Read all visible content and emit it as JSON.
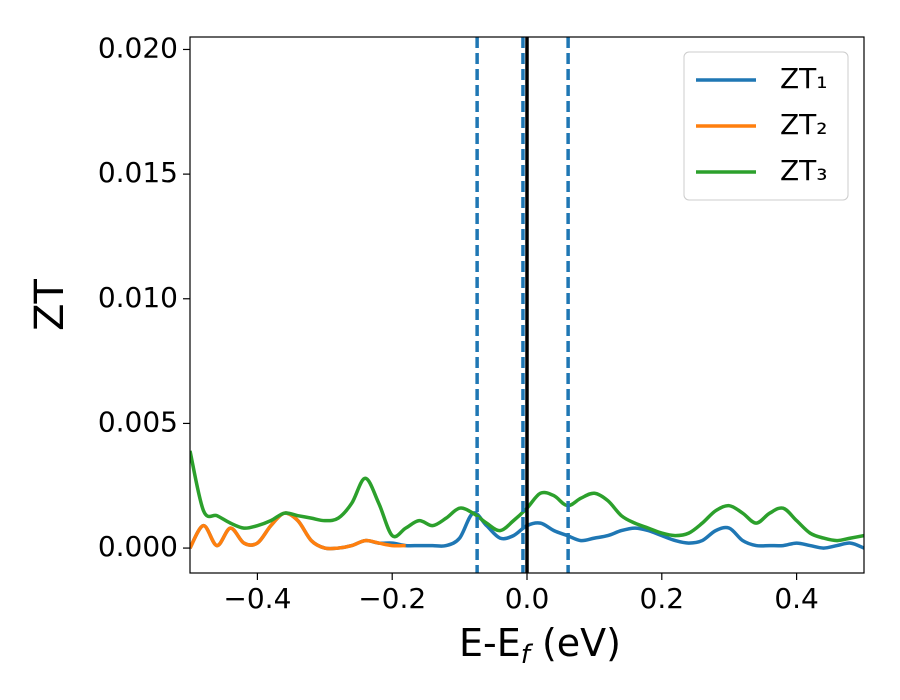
{
  "chart_data": {
    "type": "line",
    "x_label": [
      "E-E",
      "f",
      " (eV)"
    ],
    "y_label": "ZT",
    "x": [
      -0.5,
      -0.48,
      -0.46,
      -0.44,
      -0.42,
      -0.4,
      -0.38,
      -0.36,
      -0.34,
      -0.32,
      -0.3,
      -0.28,
      -0.26,
      -0.24,
      -0.22,
      -0.2,
      -0.18,
      -0.16,
      -0.14,
      -0.12,
      -0.1,
      -0.08,
      -0.06,
      -0.04,
      -0.02,
      0.0,
      0.02,
      0.04,
      0.06,
      0.08,
      0.1,
      0.12,
      0.14,
      0.16,
      0.18,
      0.2,
      0.22,
      0.24,
      0.26,
      0.28,
      0.3,
      0.32,
      0.34,
      0.36,
      0.38,
      0.4,
      0.42,
      0.44,
      0.46,
      0.48,
      0.5
    ],
    "series": [
      {
        "name": "ZT₁",
        "color": "#1f77b4",
        "values": [
          0.0,
          0.0009,
          0.0001,
          0.0008,
          0.0002,
          0.0002,
          0.0009,
          0.0014,
          0.0011,
          0.0003,
          0.0,
          0.0,
          0.0001,
          0.0003,
          0.0002,
          0.0002,
          0.0001,
          0.0001,
          0.0001,
          0.0001,
          0.0004,
          0.0014,
          0.0009,
          0.0004,
          0.0005,
          0.0009,
          0.001,
          0.0007,
          0.0005,
          0.0003,
          0.0004,
          0.0005,
          0.0007,
          0.0008,
          0.0007,
          0.0005,
          0.0003,
          0.0002,
          0.0003,
          0.0007,
          0.0008,
          0.0003,
          0.0001,
          0.0001,
          0.0001,
          0.0002,
          0.0001,
          0.0,
          0.0001,
          0.0002,
          0.0
        ]
      },
      {
        "name": "ZT₂",
        "color": "#ff7f0e",
        "values": [
          0.0,
          0.0009,
          0.0001,
          0.0008,
          0.0002,
          0.0002,
          0.0009,
          0.0014,
          0.0011,
          0.0003,
          0.0,
          0.0,
          0.0001,
          0.0003,
          0.0002,
          0.0001,
          0.0001,
          null,
          null,
          null,
          null,
          null,
          null,
          null,
          null,
          null,
          null,
          null,
          null,
          null,
          null,
          null,
          null,
          null,
          null,
          null,
          null,
          null,
          null,
          null,
          null,
          null,
          null,
          null,
          null,
          null,
          null,
          null,
          null,
          null,
          null
        ]
      },
      {
        "name": "ZT₃",
        "color": "#2ca02c",
        "values": [
          0.0039,
          0.0015,
          0.0013,
          0.001,
          0.0008,
          0.0009,
          0.0011,
          0.0014,
          0.0013,
          0.0012,
          0.0011,
          0.0012,
          0.0018,
          0.0028,
          0.0018,
          0.0005,
          0.0008,
          0.0011,
          0.0009,
          0.0012,
          0.0016,
          0.0014,
          0.001,
          0.0007,
          0.0011,
          0.0016,
          0.0022,
          0.0021,
          0.0017,
          0.002,
          0.0022,
          0.0019,
          0.0013,
          0.001,
          0.0008,
          0.0006,
          0.0005,
          0.0006,
          0.001,
          0.0015,
          0.0017,
          0.0014,
          0.001,
          0.0014,
          0.0016,
          0.0011,
          0.0006,
          0.0004,
          0.0003,
          0.0004,
          0.0005
        ]
      }
    ],
    "vlines": [
      {
        "x": -0.074,
        "color": "#1f77b4",
        "dashed": true
      },
      {
        "x": -0.006,
        "color": "#1f77b4",
        "dashed": true
      },
      {
        "x": 0.061,
        "color": "#1f77b4",
        "dashed": true
      },
      {
        "x": 0.0,
        "color": "#000000",
        "dashed": false
      }
    ],
    "xlim": [
      -0.5,
      0.5
    ],
    "ylim": [
      -0.001,
      0.0205
    ],
    "xticks": [
      {
        "value": -0.4,
        "label": "−0.4"
      },
      {
        "value": -0.2,
        "label": "−0.2"
      },
      {
        "value": 0.0,
        "label": "0.0"
      },
      {
        "value": 0.2,
        "label": "0.2"
      },
      {
        "value": 0.4,
        "label": "0.4"
      }
    ],
    "yticks": [
      {
        "value": 0.0,
        "label": "0.000"
      },
      {
        "value": 0.005,
        "label": "0.005"
      },
      {
        "value": 0.01,
        "label": "0.010"
      },
      {
        "value": 0.015,
        "label": "0.015"
      },
      {
        "value": 0.02,
        "label": "0.020"
      }
    ],
    "grid": false,
    "legend": "upper right"
  }
}
